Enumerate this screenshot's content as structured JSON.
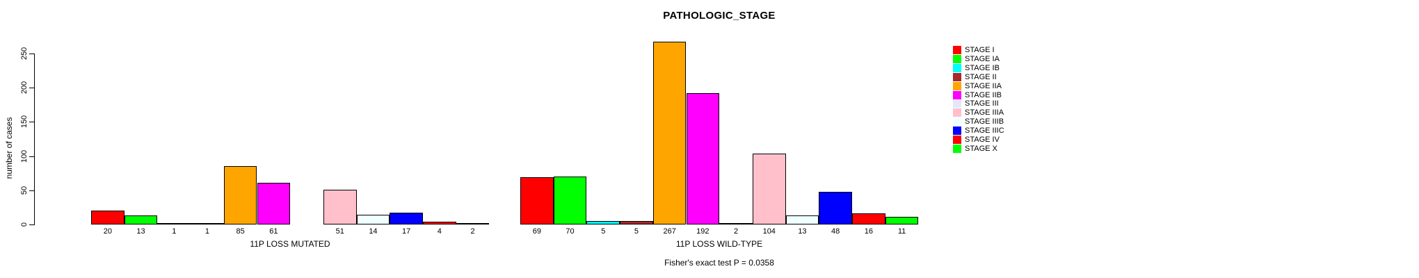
{
  "title": "PATHOLOGIC_STAGE",
  "chart_data": {
    "type": "bar",
    "title": "PATHOLOGIC_STAGE",
    "subtitle": "Fisher's exact test P = 0.0358",
    "xlabel": "",
    "ylabel": "number of cases",
    "ylim": [
      0,
      250
    ],
    "yticks": [
      0,
      50,
      100,
      150,
      200,
      250
    ],
    "grid": false,
    "bar_outline_color": "#000000",
    "legend_position": "top-right",
    "stages": [
      {
        "label": "STAGE I",
        "color": "#FF0000"
      },
      {
        "label": "STAGE IA",
        "color": "#00FF00"
      },
      {
        "label": "STAGE IB",
        "color": "#00FFFF"
      },
      {
        "label": "STAGE II",
        "color": "#A52A2A"
      },
      {
        "label": "STAGE IIA",
        "color": "#FFA500"
      },
      {
        "label": "STAGE IIB",
        "color": "#FF00FF"
      },
      {
        "label": "STAGE III",
        "color": "#E6E6FA"
      },
      {
        "label": "STAGE IIIA",
        "color": "#FFC0CB"
      },
      {
        "label": "STAGE IIIB",
        "color": "#F0FFFF"
      },
      {
        "label": "STAGE IIIC",
        "color": "#0000FF"
      },
      {
        "label": "STAGE IV",
        "color": "#FF0000"
      },
      {
        "label": "STAGE X",
        "color": "#00FF00"
      }
    ],
    "groups": [
      {
        "label": "11P LOSS MUTATED",
        "values": [
          20,
          13,
          1,
          1,
          85,
          61,
          null,
          51,
          14,
          17,
          4,
          2
        ]
      },
      {
        "label": "11P LOSS WILD-TYPE",
        "values": [
          69,
          70,
          5,
          5,
          267,
          192,
          2,
          104,
          13,
          48,
          16,
          11
        ]
      }
    ]
  }
}
